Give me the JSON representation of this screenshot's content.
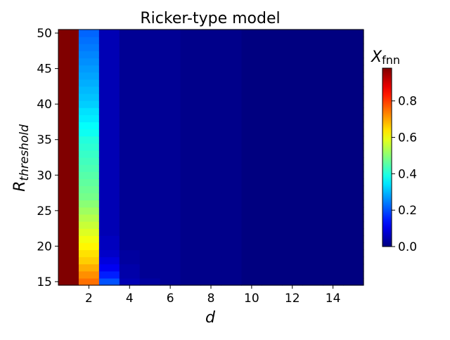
{
  "chart_data": {
    "type": "heatmap",
    "title": "Ricker-type model",
    "xlabel": "d",
    "ylabel_main": "R",
    "ylabel_sub": "threshold",
    "colorbar_label_main": "X",
    "colorbar_label_sub": "fnn",
    "colormap": "jet",
    "x_range": [
      0.5,
      15.5
    ],
    "y_range": [
      14.5,
      50.5
    ],
    "x_ticks": [
      2,
      4,
      6,
      8,
      10,
      12,
      14
    ],
    "y_ticks": [
      15,
      20,
      25,
      30,
      35,
      40,
      45,
      50
    ],
    "colorbar_range": [
      0.0,
      0.98
    ],
    "colorbar_ticks": [
      0.0,
      0.2,
      0.4,
      0.6,
      0.8
    ],
    "x": [
      1,
      2,
      3,
      4,
      5,
      6,
      7,
      8,
      9,
      10,
      11,
      12,
      13,
      14,
      15
    ],
    "y": [
      15,
      16,
      17,
      18,
      19,
      20,
      21,
      22,
      23,
      24,
      25,
      26,
      27,
      28,
      29,
      30,
      31,
      32,
      33,
      34,
      35,
      36,
      37,
      38,
      39,
      40,
      41,
      42,
      43,
      44,
      45,
      46,
      47,
      48,
      49,
      50
    ],
    "columns": [
      {
        "x": 1,
        "values": [
          0.98,
          0.98,
          0.98,
          0.98,
          0.98,
          0.98,
          0.98,
          0.98,
          0.98,
          0.98,
          0.98,
          0.98,
          0.98,
          0.98,
          0.98,
          0.98,
          0.98,
          0.98,
          0.98,
          0.98,
          0.98,
          0.98,
          0.98,
          0.98,
          0.98,
          0.98,
          0.98,
          0.98,
          0.98,
          0.98,
          0.98,
          0.98,
          0.98,
          0.98,
          0.98,
          0.98
        ]
      },
      {
        "x": 2,
        "values": [
          0.75,
          0.72,
          0.69,
          0.66,
          0.64,
          0.62,
          0.6,
          0.58,
          0.56,
          0.54,
          0.52,
          0.5,
          0.48,
          0.47,
          0.46,
          0.45,
          0.44,
          0.43,
          0.42,
          0.41,
          0.4,
          0.38,
          0.37,
          0.35,
          0.34,
          0.32,
          0.31,
          0.3,
          0.29,
          0.28,
          0.27,
          0.26,
          0.25,
          0.24,
          0.23,
          0.22
        ]
      },
      {
        "x": 3,
        "values": [
          0.2,
          0.15,
          0.11,
          0.09,
          0.07,
          0.06,
          0.06,
          0.05,
          0.05,
          0.05,
          0.05,
          0.05,
          0.05,
          0.05,
          0.05,
          0.05,
          0.05,
          0.05,
          0.05,
          0.05,
          0.05,
          0.05,
          0.05,
          0.05,
          0.05,
          0.05,
          0.05,
          0.05,
          0.05,
          0.05,
          0.05,
          0.05,
          0.05,
          0.05,
          0.05,
          0.05
        ]
      },
      {
        "x": 4,
        "values": [
          0.05,
          0.04,
          0.04,
          0.03,
          0.03,
          0.02,
          0.02,
          0.02,
          0.02,
          0.02,
          0.02,
          0.02,
          0.02,
          0.02,
          0.02,
          0.02,
          0.02,
          0.02,
          0.02,
          0.02,
          0.02,
          0.02,
          0.02,
          0.02,
          0.02,
          0.02,
          0.02,
          0.02,
          0.02,
          0.02,
          0.02,
          0.02,
          0.02,
          0.02,
          0.02,
          0.02
        ]
      },
      {
        "x": 5,
        "values": [
          0.03,
          0.02,
          0.02,
          0.02,
          0.02,
          0.02,
          0.02,
          0.02,
          0.02,
          0.02,
          0.02,
          0.02,
          0.02,
          0.02,
          0.02,
          0.02,
          0.02,
          0.02,
          0.02,
          0.02,
          0.02,
          0.02,
          0.02,
          0.02,
          0.02,
          0.02,
          0.02,
          0.02,
          0.02,
          0.02,
          0.02,
          0.02,
          0.02,
          0.02,
          0.02,
          0.02
        ]
      },
      {
        "x": 6,
        "values": [
          0.02,
          0.02,
          0.02,
          0.02,
          0.02,
          0.02,
          0.02,
          0.02,
          0.02,
          0.02,
          0.02,
          0.02,
          0.02,
          0.02,
          0.02,
          0.02,
          0.02,
          0.02,
          0.02,
          0.02,
          0.02,
          0.02,
          0.02,
          0.02,
          0.02,
          0.02,
          0.02,
          0.02,
          0.02,
          0.02,
          0.02,
          0.02,
          0.02,
          0.02,
          0.02,
          0.02
        ]
      },
      {
        "x": 7,
        "values": [
          0.01,
          0.01,
          0.01,
          0.01,
          0.01,
          0.01,
          0.01,
          0.01,
          0.01,
          0.01,
          0.01,
          0.01,
          0.01,
          0.01,
          0.01,
          0.01,
          0.01,
          0.01,
          0.01,
          0.01,
          0.01,
          0.01,
          0.01,
          0.01,
          0.01,
          0.01,
          0.01,
          0.01,
          0.01,
          0.01,
          0.01,
          0.01,
          0.01,
          0.01,
          0.01,
          0.01
        ]
      },
      {
        "x": 8,
        "values": [
          0.01,
          0.01,
          0.01,
          0.01,
          0.01,
          0.01,
          0.01,
          0.01,
          0.01,
          0.01,
          0.01,
          0.01,
          0.01,
          0.01,
          0.01,
          0.01,
          0.01,
          0.01,
          0.01,
          0.01,
          0.01,
          0.01,
          0.01,
          0.01,
          0.01,
          0.01,
          0.01,
          0.01,
          0.01,
          0.01,
          0.01,
          0.01,
          0.01,
          0.01,
          0.01,
          0.01
        ]
      },
      {
        "x": 9,
        "values": [
          0.01,
          0.01,
          0.01,
          0.01,
          0.01,
          0.01,
          0.01,
          0.01,
          0.01,
          0.01,
          0.01,
          0.01,
          0.01,
          0.01,
          0.01,
          0.01,
          0.01,
          0.01,
          0.01,
          0.01,
          0.01,
          0.01,
          0.01,
          0.01,
          0.01,
          0.01,
          0.01,
          0.01,
          0.01,
          0.01,
          0.01,
          0.01,
          0.01,
          0.01,
          0.01,
          0.01
        ]
      },
      {
        "x": 10,
        "values": [
          0.0,
          0.0,
          0.0,
          0.0,
          0.0,
          0.0,
          0.0,
          0.0,
          0.0,
          0.0,
          0.0,
          0.0,
          0.0,
          0.0,
          0.0,
          0.0,
          0.0,
          0.0,
          0.0,
          0.0,
          0.0,
          0.0,
          0.0,
          0.0,
          0.0,
          0.0,
          0.0,
          0.0,
          0.0,
          0.0,
          0.0,
          0.0,
          0.0,
          0.0,
          0.0,
          0.0
        ]
      },
      {
        "x": 11,
        "values": [
          0.0,
          0.0,
          0.0,
          0.0,
          0.0,
          0.0,
          0.0,
          0.0,
          0.0,
          0.0,
          0.0,
          0.0,
          0.0,
          0.0,
          0.0,
          0.0,
          0.0,
          0.0,
          0.0,
          0.0,
          0.0,
          0.0,
          0.0,
          0.0,
          0.0,
          0.0,
          0.0,
          0.0,
          0.0,
          0.0,
          0.0,
          0.0,
          0.0,
          0.0,
          0.0,
          0.0
        ]
      },
      {
        "x": 12,
        "values": [
          0.0,
          0.0,
          0.0,
          0.0,
          0.0,
          0.0,
          0.0,
          0.0,
          0.0,
          0.0,
          0.0,
          0.0,
          0.0,
          0.0,
          0.0,
          0.0,
          0.0,
          0.0,
          0.0,
          0.0,
          0.0,
          0.0,
          0.0,
          0.0,
          0.0,
          0.0,
          0.0,
          0.0,
          0.0,
          0.0,
          0.0,
          0.0,
          0.0,
          0.0,
          0.0,
          0.0
        ]
      },
      {
        "x": 13,
        "values": [
          0.0,
          0.0,
          0.0,
          0.0,
          0.0,
          0.0,
          0.0,
          0.0,
          0.0,
          0.0,
          0.0,
          0.0,
          0.0,
          0.0,
          0.0,
          0.0,
          0.0,
          0.0,
          0.0,
          0.0,
          0.0,
          0.0,
          0.0,
          0.0,
          0.0,
          0.0,
          0.0,
          0.0,
          0.0,
          0.0,
          0.0,
          0.0,
          0.0,
          0.0,
          0.0,
          0.0
        ]
      },
      {
        "x": 14,
        "values": [
          0.0,
          0.0,
          0.0,
          0.0,
          0.0,
          0.0,
          0.0,
          0.0,
          0.0,
          0.0,
          0.0,
          0.0,
          0.0,
          0.0,
          0.0,
          0.0,
          0.0,
          0.0,
          0.0,
          0.0,
          0.0,
          0.0,
          0.0,
          0.0,
          0.0,
          0.0,
          0.0,
          0.0,
          0.0,
          0.0,
          0.0,
          0.0,
          0.0,
          0.0,
          0.0,
          0.0
        ]
      },
      {
        "x": 15,
        "values": [
          0.0,
          0.0,
          0.0,
          0.0,
          0.0,
          0.0,
          0.0,
          0.0,
          0.0,
          0.0,
          0.0,
          0.0,
          0.0,
          0.0,
          0.0,
          0.0,
          0.0,
          0.0,
          0.0,
          0.0,
          0.0,
          0.0,
          0.0,
          0.0,
          0.0,
          0.0,
          0.0,
          0.0,
          0.0,
          0.0,
          0.0,
          0.0,
          0.0,
          0.0,
          0.0,
          0.0
        ]
      }
    ]
  }
}
